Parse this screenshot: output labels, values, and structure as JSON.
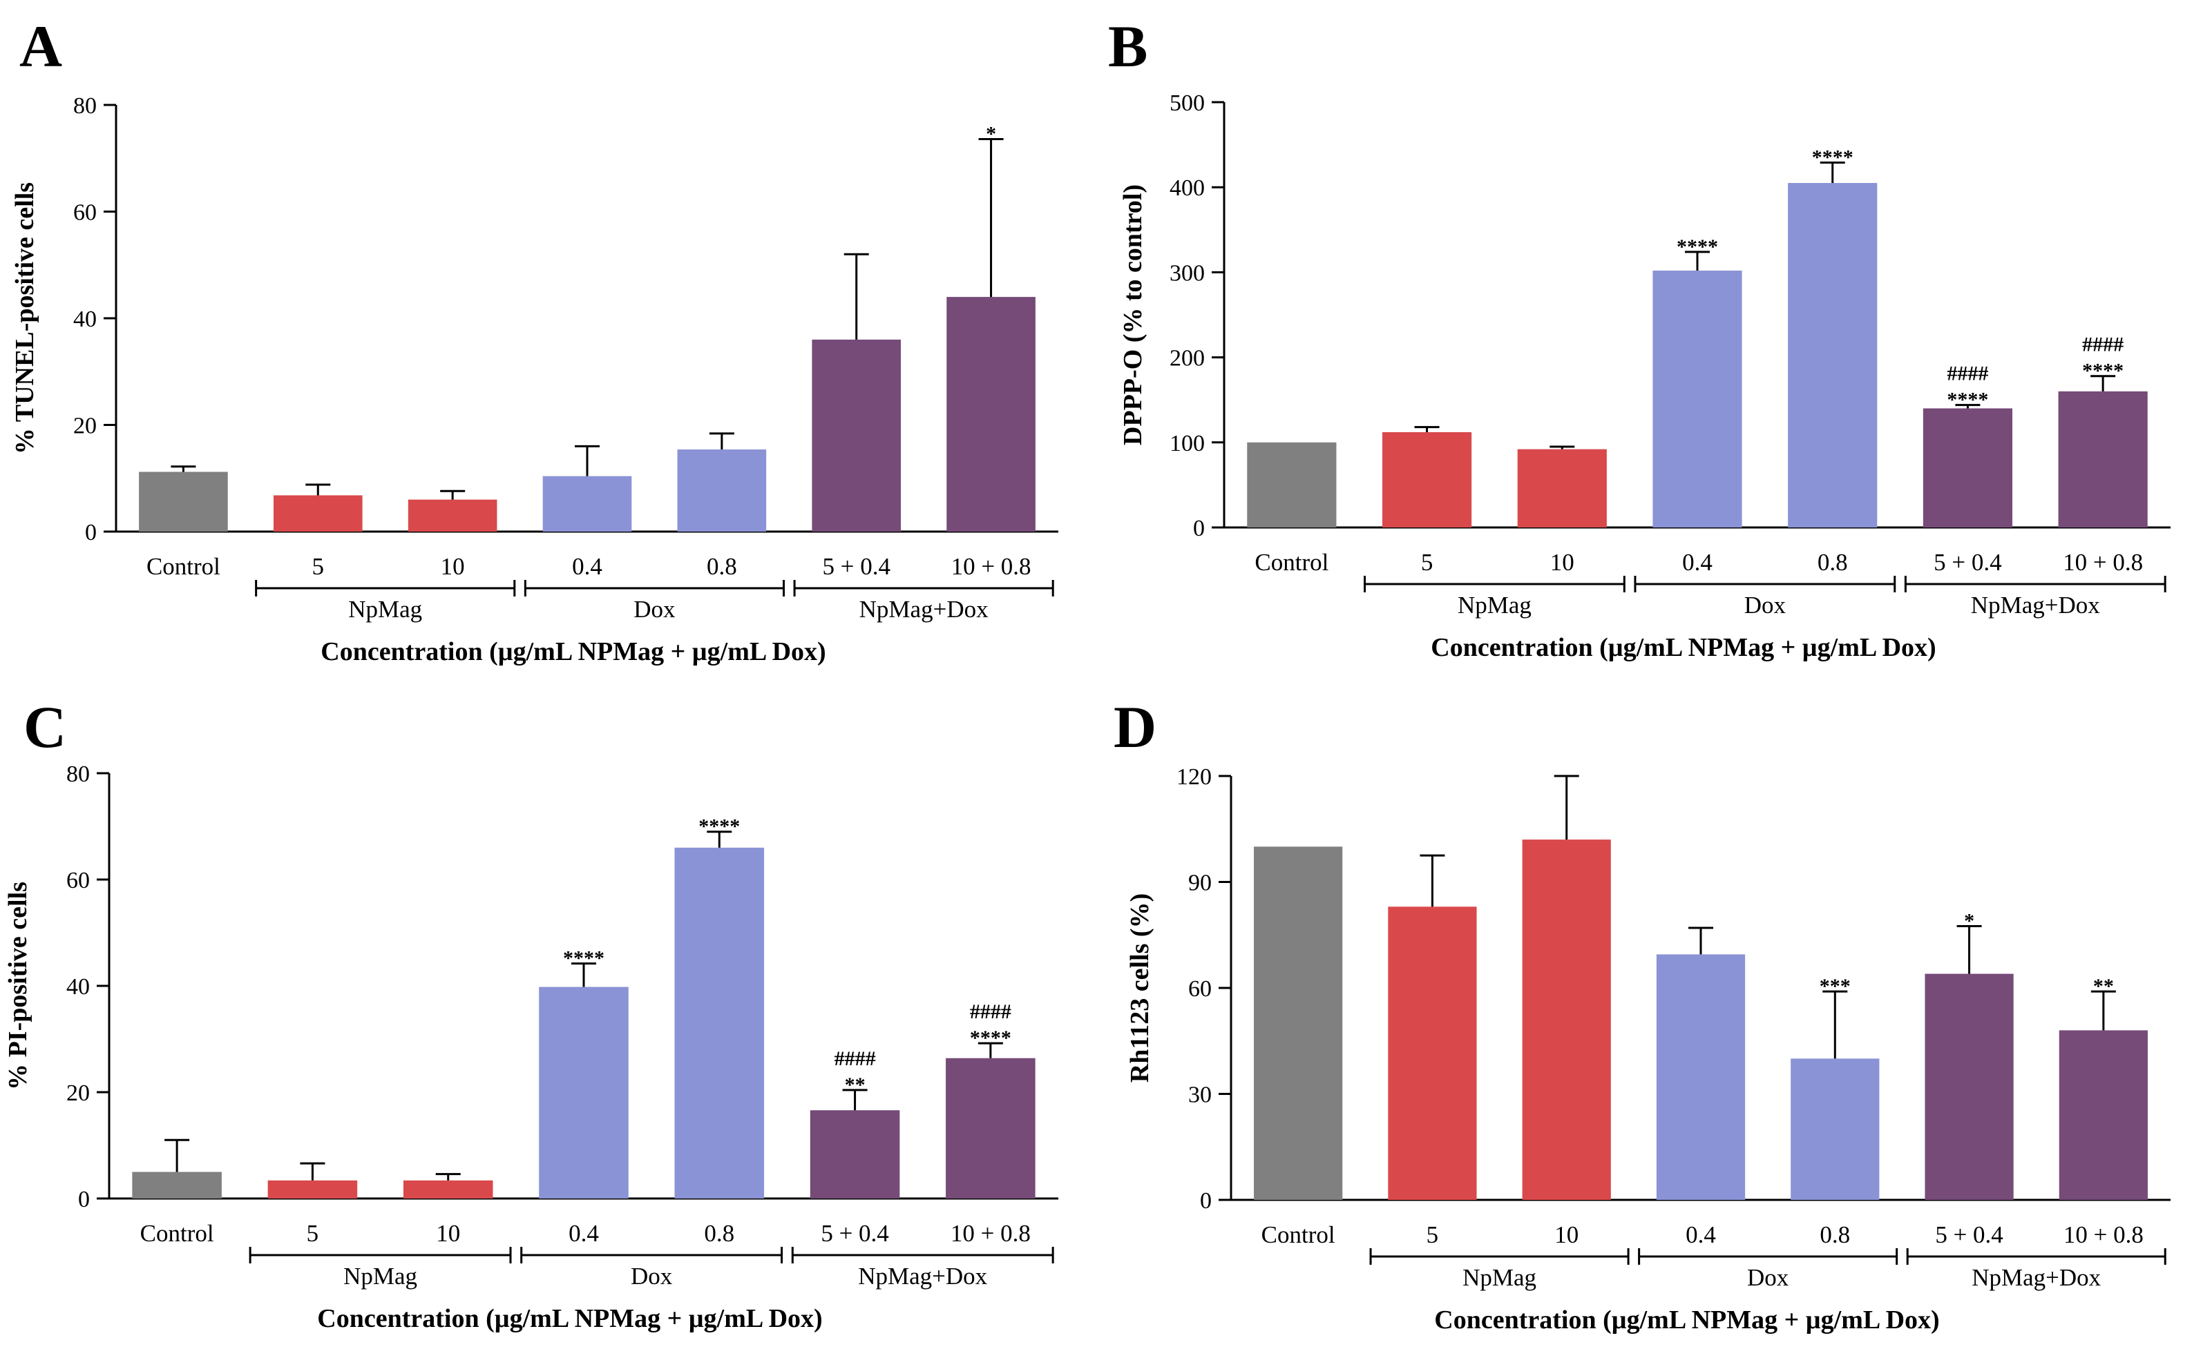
{
  "chart_data": [
    {
      "type": "bar",
      "panel": "A",
      "ylabel": "% TUNEL-positive cells",
      "xlabel": "Concentration (µg/mL NPMag + µg/mL Dox)",
      "ylim": [
        0,
        80
      ],
      "yticks": [
        "0",
        "20",
        "40",
        "60",
        "80"
      ],
      "categories": [
        "Control",
        "5",
        "10",
        "0.4",
        "0.8",
        "5 + 0.4",
        "10 + 0.8"
      ],
      "values": [
        11.2,
        6.8,
        6.0,
        10.4,
        15.4,
        36.0,
        44.0
      ],
      "errors": [
        1.0,
        2.0,
        1.6,
        5.6,
        3.0,
        16.0,
        29.6
      ],
      "colors": [
        "#808080",
        "#d9494b",
        "#d9494b",
        "#8a93d6",
        "#8a93d6",
        "#764b78",
        "#764b78"
      ],
      "significance": [
        "",
        "",
        "",
        "",
        "",
        "",
        "*"
      ],
      "hash_significance": [
        "",
        "",
        "",
        "",
        "",
        "",
        ""
      ],
      "groups": [
        {
          "name": "NpMag",
          "from": 1,
          "to": 2
        },
        {
          "name": "Dox",
          "from": 3,
          "to": 4
        },
        {
          "name": "NpMag+Dox",
          "from": 5,
          "to": 6
        }
      ]
    },
    {
      "type": "bar",
      "panel": "B",
      "ylabel": "DPPP-O (% to control)",
      "xlabel": "Concentration (µg/mL NPMag + µg/mL Dox)",
      "ylim": [
        0,
        500
      ],
      "yticks": [
        "0",
        "100",
        "200",
        "300",
        "400",
        "500"
      ],
      "categories": [
        "Control",
        "5",
        "10",
        "0.4",
        "0.8",
        "5 + 0.4",
        "10 + 0.8"
      ],
      "values": [
        100,
        112,
        92,
        302,
        405,
        140,
        160
      ],
      "errors": [
        0,
        6,
        3,
        22,
        24,
        4,
        18
      ],
      "colors": [
        "#808080",
        "#d9494b",
        "#d9494b",
        "#8a93d6",
        "#8a93d6",
        "#764b78",
        "#764b78"
      ],
      "significance": [
        "",
        "",
        "",
        "****",
        "****",
        "****",
        "****"
      ],
      "hash_significance": [
        "",
        "",
        "",
        "",
        "",
        "####",
        "####"
      ],
      "groups": [
        {
          "name": "NpMag",
          "from": 1,
          "to": 2
        },
        {
          "name": "Dox",
          "from": 3,
          "to": 4
        },
        {
          "name": "NpMag+Dox",
          "from": 5,
          "to": 6
        }
      ]
    },
    {
      "type": "bar",
      "panel": "C",
      "ylabel": "% PI-positive cells",
      "xlabel": "Concentration (µg/mL NPMag + µg/mL Dox)",
      "ylim": [
        0,
        80
      ],
      "yticks": [
        "0",
        "20",
        "40",
        "60",
        "80"
      ],
      "categories": [
        "Control",
        "5",
        "10",
        "0.4",
        "0.8",
        "5 + 0.4",
        "10 + 0.8"
      ],
      "values": [
        5.0,
        3.4,
        3.4,
        39.8,
        66.0,
        16.6,
        26.4
      ],
      "errors": [
        6.0,
        3.2,
        1.2,
        4.4,
        3.0,
        3.8,
        2.8
      ],
      "colors": [
        "#808080",
        "#d9494b",
        "#d9494b",
        "#8a93d6",
        "#8a93d6",
        "#764b78",
        "#764b78"
      ],
      "significance": [
        "",
        "",
        "",
        "****",
        "****",
        "**",
        "****"
      ],
      "hash_significance": [
        "",
        "",
        "",
        "",
        "",
        "####",
        "####"
      ],
      "groups": [
        {
          "name": "NpMag",
          "from": 1,
          "to": 2
        },
        {
          "name": "Dox",
          "from": 3,
          "to": 4
        },
        {
          "name": "NpMag+Dox",
          "from": 5,
          "to": 6
        }
      ]
    },
    {
      "type": "bar",
      "panel": "D",
      "ylabel": "Rh1123 cells (%)",
      "xlabel": "Concentration (µg/mL NPMag + µg/mL Dox)",
      "ylim": [
        0,
        120
      ],
      "yticks": [
        "0",
        "30",
        "60",
        "90",
        "120"
      ],
      "categories": [
        "Control",
        "5",
        "10",
        "0.4",
        "0.8",
        "5 + 0.4",
        "10 + 0.8"
      ],
      "values": [
        100,
        83,
        102,
        69.5,
        40,
        64,
        48
      ],
      "errors": [
        0,
        14.5,
        18,
        7.5,
        19,
        13.5,
        11
      ],
      "colors": [
        "#808080",
        "#d9494b",
        "#d9494b",
        "#8a93d6",
        "#8a93d6",
        "#764b78",
        "#764b78"
      ],
      "significance": [
        "",
        "",
        "",
        "",
        "***",
        "*",
        "**"
      ],
      "hash_significance": [
        "",
        "",
        "",
        "",
        "",
        "",
        ""
      ],
      "groups": [
        {
          "name": "NpMag",
          "from": 1,
          "to": 2
        },
        {
          "name": "Dox",
          "from": 3,
          "to": 4
        },
        {
          "name": "NpMag+Dox",
          "from": 5,
          "to": 6
        }
      ]
    }
  ]
}
